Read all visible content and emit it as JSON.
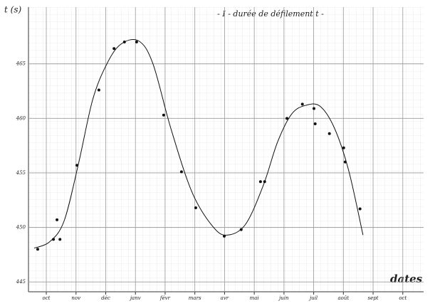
{
  "chart_data": {
    "type": "scatter",
    "title": "- I - durée de défilement t -",
    "y_label": "t (s)",
    "x_label": "dates",
    "xlim": [
      -0.6,
      12.7
    ],
    "ylim": [
      444.1,
      470.2
    ],
    "xticks": [
      {
        "value": 0,
        "label": "oct"
      },
      {
        "value": 1,
        "label": "nov"
      },
      {
        "value": 2,
        "label": "déc"
      },
      {
        "value": 3,
        "label": "janv"
      },
      {
        "value": 4,
        "label": "févr"
      },
      {
        "value": 5,
        "label": "mars"
      },
      {
        "value": 6,
        "label": "avr"
      },
      {
        "value": 7,
        "label": "mai"
      },
      {
        "value": 8,
        "label": "juin"
      },
      {
        "value": 9,
        "label": "juil"
      },
      {
        "value": 10,
        "label": "août"
      },
      {
        "value": 11,
        "label": "sept"
      },
      {
        "value": 12,
        "label": "oct"
      }
    ],
    "yticks": [
      445,
      450,
      455,
      460,
      465
    ],
    "grid": true,
    "series": [
      {
        "type": "scatter",
        "color": "#111",
        "x": [
          -0.29,
          0.24,
          0.36,
          0.46,
          1.03,
          1.77,
          2.28,
          2.63,
          3.04,
          3.95,
          4.55,
          5.03,
          5.99,
          6.56,
          7.21,
          7.35,
          8.1,
          8.62,
          9.01,
          9.05,
          9.53,
          10.01,
          10.06,
          10.56
        ],
        "values": [
          448.0,
          448.9,
          450.7,
          448.9,
          455.7,
          462.6,
          466.4,
          467.0,
          467.0,
          460.3,
          455.1,
          451.8,
          449.2,
          449.8,
          454.2,
          454.2,
          460.0,
          461.3,
          460.9,
          459.5,
          458.6,
          457.3,
          456.0,
          451.7
        ]
      },
      {
        "type": "line",
        "color": "#111",
        "x": [
          -0.41,
          0.12,
          0.6,
          1.08,
          1.56,
          2.04,
          2.51,
          3.11,
          3.59,
          4.19,
          4.91,
          5.63,
          6.11,
          6.71,
          7.31,
          7.78,
          8.26,
          8.74,
          9.22,
          9.7,
          10.18,
          10.66
        ],
        "values": [
          448.1,
          448.7,
          450.6,
          455.8,
          461.7,
          465.0,
          466.8,
          467.1,
          465.0,
          459.1,
          453.2,
          450.0,
          449.3,
          450.3,
          453.9,
          457.8,
          460.4,
          461.2,
          461.1,
          459.1,
          455.2,
          449.3
        ]
      }
    ]
  }
}
